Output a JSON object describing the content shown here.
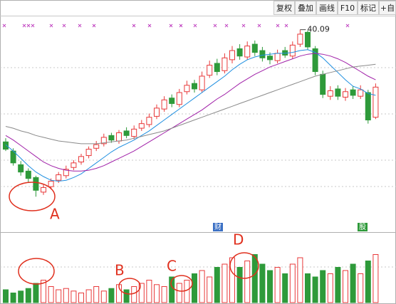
{
  "toolbar": [
    "复权",
    "叠加",
    "画线",
    "F10",
    "标记",
    "+自"
  ],
  "chart_data": {
    "type": "candlestick",
    "open": [
      27.8,
      26.8,
      25.3,
      24.6,
      23.9,
      22.3,
      22.9,
      23.6,
      24.1,
      25.0,
      25.6,
      26.3,
      27.1,
      27.6,
      28.5,
      27.9,
      29.0,
      28.4,
      29.3,
      29.7,
      30.6,
      31.4,
      32.6,
      31.9,
      33.3,
      34.2,
      33.5,
      35.1,
      36.4,
      35.6,
      36.8,
      38.0,
      37.1,
      38.5,
      37.8,
      37.2,
      36.7,
      37.8,
      37.2,
      38.5,
      39.8,
      38.0,
      35.2,
      32.8,
      33.6,
      32.7,
      33.5,
      32.8,
      33.2,
      30.5
    ],
    "high": [
      28.2,
      27.1,
      25.7,
      24.9,
      24.1,
      23.1,
      23.8,
      24.5,
      25.2,
      25.8,
      26.5,
      27.3,
      27.9,
      28.7,
      28.8,
      29.1,
      29.4,
      29.6,
      30.2,
      30.9,
      31.9,
      32.8,
      33.0,
      33.6,
      34.5,
      34.6,
      35.5,
      36.7,
      36.9,
      37.5,
      38.3,
      38.5,
      38.8,
      38.9,
      38.2,
      37.6,
      37.9,
      38.2,
      38.8,
      40.09,
      40.0,
      38.3,
      35.6,
      33.9,
      34.0,
      33.7,
      33.9,
      34.0,
      33.5,
      34.2
    ],
    "low": [
      26.8,
      25.2,
      24.1,
      23.4,
      21.8,
      22.0,
      22.6,
      23.3,
      23.8,
      24.7,
      25.3,
      26.0,
      26.8,
      27.3,
      27.7,
      27.6,
      28.2,
      28.1,
      29.0,
      29.4,
      30.3,
      31.1,
      31.6,
      31.6,
      33.0,
      33.2,
      33.2,
      34.8,
      35.1,
      35.3,
      36.4,
      36.8,
      36.8,
      37.2,
      36.6,
      36.3,
      36.4,
      37.0,
      36.9,
      38.2,
      37.9,
      35.1,
      32.6,
      32.4,
      32.4,
      32.3,
      32.5,
      32.5,
      29.8,
      30.3
    ],
    "close": [
      27.0,
      25.5,
      24.5,
      23.8,
      22.5,
      22.8,
      23.5,
      24.2,
      24.8,
      25.5,
      26.2,
      27.0,
      27.5,
      28.3,
      28.0,
      28.8,
      28.5,
      29.2,
      29.8,
      30.5,
      31.5,
      32.4,
      32.0,
      33.2,
      34.0,
      33.6,
      35.0,
      36.2,
      35.5,
      37.0,
      37.8,
      37.2,
      38.3,
      37.6,
      37.0,
      36.8,
      37.5,
      37.3,
      38.4,
      39.6,
      38.2,
      35.5,
      33.0,
      33.4,
      32.8,
      33.3,
      32.9,
      33.5,
      30.2,
      33.8
    ],
    "up_color": "#e8393a",
    "down_color": "#2e9a3a",
    "ylim": [
      18,
      41
    ],
    "moving_averages": [
      {
        "color": "#1f8fe0",
        "values": [
          27.5,
          26.8,
          26.0,
          25.2,
          24.5,
          24.0,
          23.6,
          23.5,
          23.6,
          23.9,
          24.3,
          24.9,
          25.5,
          26.1,
          26.7,
          27.2,
          27.6,
          28.0,
          28.5,
          29.0,
          29.6,
          30.2,
          30.8,
          31.4,
          32.0,
          32.6,
          33.2,
          33.8,
          34.4,
          35.0,
          35.7,
          36.3,
          36.8,
          37.1,
          37.3,
          37.4,
          37.5,
          37.5,
          37.6,
          37.8,
          37.9,
          37.6,
          37.0,
          36.2,
          35.4,
          34.6,
          33.9,
          33.6,
          33.1,
          32.9
        ]
      },
      {
        "color": "#a020a8",
        "values": [
          28.5,
          28.0,
          27.4,
          26.8,
          26.2,
          25.6,
          25.2,
          24.9,
          24.7,
          24.6,
          24.6,
          24.7,
          24.9,
          25.2,
          25.6,
          26.0,
          26.4,
          26.8,
          27.3,
          27.8,
          28.3,
          28.8,
          29.3,
          29.8,
          30.3,
          30.8,
          31.3,
          31.9,
          32.5,
          33.0,
          33.6,
          34.2,
          34.7,
          35.2,
          35.6,
          36.0,
          36.3,
          36.6,
          36.9,
          37.2,
          37.4,
          37.5,
          37.4,
          37.2,
          36.9,
          36.5,
          36.0,
          35.5,
          35.0,
          34.6
        ]
      },
      {
        "color": "#8a8a8a",
        "values": [
          29.5,
          29.3,
          29.0,
          28.8,
          28.5,
          28.3,
          28.1,
          27.9,
          27.8,
          27.7,
          27.6,
          27.6,
          27.6,
          27.7,
          27.8,
          27.9,
          28.0,
          28.2,
          28.4,
          28.6,
          28.8,
          29.0,
          29.3,
          29.6,
          29.9,
          30.2,
          30.5,
          30.8,
          31.1,
          31.4,
          31.7,
          32.0,
          32.3,
          32.6,
          32.9,
          33.2,
          33.5,
          33.8,
          34.1,
          34.4,
          34.7,
          35.0,
          35.2,
          35.4,
          35.6,
          35.8,
          36.0,
          36.1,
          36.2,
          36.3
        ]
      }
    ],
    "volume": {
      "values": [
        20,
        15,
        18,
        22,
        30,
        35,
        25,
        20,
        22,
        18,
        15,
        20,
        25,
        18,
        22,
        28,
        20,
        25,
        30,
        35,
        28,
        25,
        40,
        30,
        35,
        45,
        50,
        40,
        55,
        60,
        70,
        55,
        65,
        75,
        60,
        50,
        55,
        45,
        60,
        70,
        45,
        40,
        50,
        45,
        55,
        50,
        60,
        45,
        65,
        75
      ],
      "ylim": [
        0,
        100
      ]
    },
    "annotations": [
      "A",
      "B",
      "C",
      "D"
    ],
    "markers": [
      "财",
      "股"
    ]
  }
}
